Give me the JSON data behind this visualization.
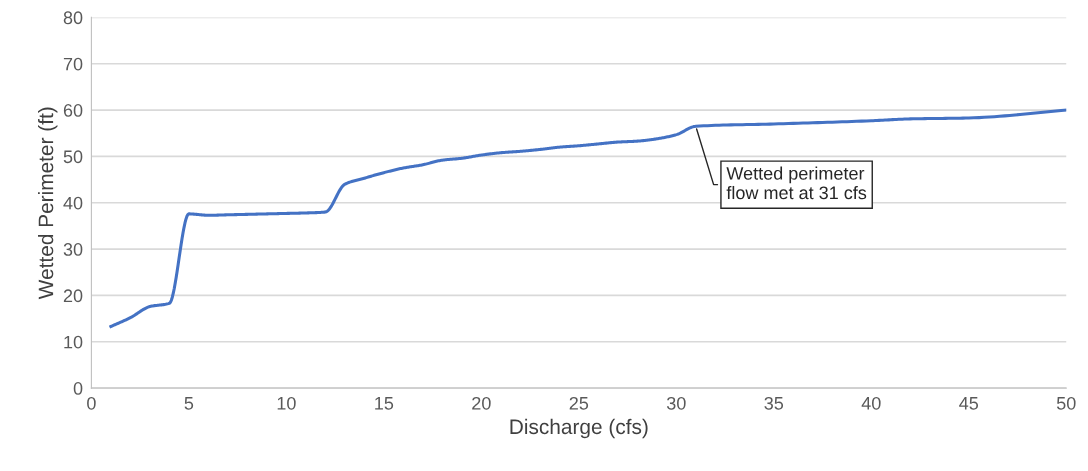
{
  "chart_data": {
    "type": "line",
    "xlabel": "Discharge (cfs)",
    "ylabel": "Wetted Perimeter (ft)",
    "x": [
      1,
      2,
      3,
      4,
      5,
      6,
      7,
      8,
      9,
      10,
      11,
      12,
      13,
      14,
      15,
      16,
      17,
      18,
      19,
      20,
      21,
      22,
      23,
      24,
      25,
      26,
      27,
      28,
      29,
      30,
      31,
      35,
      40,
      42,
      45,
      50
    ],
    "series": [
      {
        "color": "#4472c4",
        "values": [
          13.3,
          15.2,
          17.6,
          18.3,
          37.6,
          37.3,
          37.4,
          37.5,
          37.6,
          37.7,
          37.8,
          38,
          44,
          45.3,
          46.5,
          47.5,
          48.2,
          49.2,
          49.6,
          50.3,
          50.8,
          51.1,
          51.5,
          52,
          52.3,
          52.7,
          53.1,
          53.3,
          53.8,
          54.7,
          56.5,
          57,
          57.7,
          58.1,
          58.3,
          60
        ]
      }
    ],
    "xlim": [
      0,
      50
    ],
    "xticks": [
      0,
      5,
      10,
      15,
      20,
      25,
      30,
      35,
      40,
      45,
      50
    ],
    "ylim": [
      0,
      80
    ],
    "yticks": [
      0,
      10,
      20,
      30,
      40,
      50,
      60,
      70,
      80
    ],
    "grid": "y",
    "marker": "none",
    "line_style": "solid",
    "annotations": [
      {
        "text": "Wetted perimeter\nflow met at 31 cfs",
        "x": 31,
        "y": 56.5
      }
    ]
  }
}
